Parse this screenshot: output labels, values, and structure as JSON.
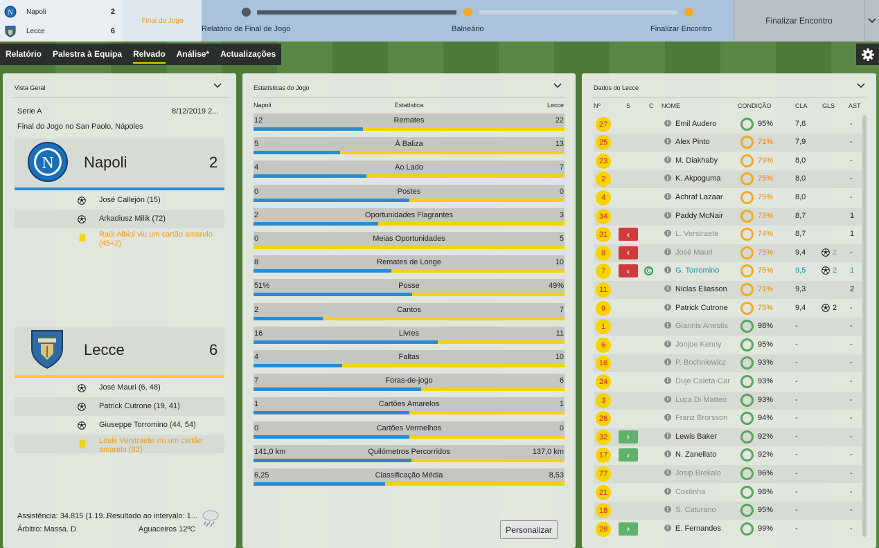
{
  "score": {
    "home": {
      "name": "Napoli",
      "goals": "2"
    },
    "away": {
      "name": "Lecce",
      "goals": "6"
    },
    "status": "Final do Jogo"
  },
  "progress": {
    "steps": [
      "Relatório de Final de Jogo",
      "Balneário",
      "Finalizar Encontro"
    ],
    "finish_button": "Finalizar Encontro",
    "colors": {
      "done": "#4f5962",
      "current": "#f2a928",
      "track": "#c8d2dc"
    }
  },
  "tabs": [
    "Relatório",
    "Palestra à Equipa",
    "Relvado",
    "Análise*",
    "Actualizações"
  ],
  "active_tab": "Relvado",
  "overview": {
    "title": "Vista Geral",
    "competition": "Serie A",
    "date": "8/12/2019 2...",
    "venue": "Final do Jogo no San Paolo, Nápoles",
    "home": {
      "name": "Napoli",
      "goals": "2",
      "color": "#2a8ad4",
      "events": [
        {
          "type": "goal",
          "text": "José Callejón (15)"
        },
        {
          "type": "goal",
          "text": "Arkadiusz Milik (72)"
        },
        {
          "type": "yellow",
          "text": "Raúl Albiol viu um cartão amarelo (45+2)"
        }
      ]
    },
    "away": {
      "name": "Lecce",
      "goals": "6",
      "color": "#f5d300",
      "events": [
        {
          "type": "goal",
          "text": "José Mauri (6, 48)"
        },
        {
          "type": "goal",
          "text": "Patrick Cutrone (19, 41)"
        },
        {
          "type": "goal",
          "text": "Giuseppe Torromino (44, 54)"
        },
        {
          "type": "yellow",
          "text": "Louis Verstraete viu um cartão amarelo (82)"
        }
      ]
    },
    "attendance": "Assistência: 34.815 (1.19...",
    "halftime": "Resultado ao intervalo: 1...",
    "referee": "Árbitro: Massa. D",
    "weather": "Aguaceiros 12ºC"
  },
  "stats": {
    "title": "Estatísticas do Jogo",
    "col_home": "Napoli",
    "col_stat": "Estatística",
    "col_away": "Lecce",
    "customize": "Personalizar",
    "rows": [
      {
        "label": "Remates",
        "home": "12",
        "away": "22",
        "home_share": 0.353
      },
      {
        "label": "À Baliza",
        "home": "5",
        "away": "13",
        "home_share": 0.278
      },
      {
        "label": "Ao Lado",
        "home": "4",
        "away": "7",
        "home_share": 0.364
      },
      {
        "label": "Postes",
        "home": "0",
        "away": "0",
        "home_share": 0.5
      },
      {
        "label": "Oportunidades Flagrantes",
        "home": "2",
        "away": "3",
        "home_share": 0.4
      },
      {
        "label": "Meias Oportunidades",
        "home": "0",
        "away": "5",
        "home_share": 0.0
      },
      {
        "label": "Remates de Longe",
        "home": "8",
        "away": "10",
        "home_share": 0.444
      },
      {
        "label": "Posse",
        "home": "51%",
        "away": "49%",
        "home_share": 0.51
      },
      {
        "label": "Cantos",
        "home": "2",
        "away": "7",
        "home_share": 0.222
      },
      {
        "label": "Livres",
        "home": "16",
        "away": "11",
        "home_share": 0.593
      },
      {
        "label": "Faltas",
        "home": "4",
        "away": "10",
        "home_share": 0.286
      },
      {
        "label": "Foras-de-jogo",
        "home": "7",
        "away": "6",
        "home_share": 0.538
      },
      {
        "label": "Cartões Amarelos",
        "home": "1",
        "away": "1",
        "home_share": 0.5
      },
      {
        "label": "Cartões Vermelhos",
        "home": "0",
        "away": "0",
        "home_share": 0.5
      },
      {
        "label": "Quilómetros Percorridos",
        "home": "141,0 km",
        "away": "137,0 km",
        "home_share": 0.507
      },
      {
        "label": "Classificação Média",
        "home": "6,25",
        "away": "8,53",
        "home_share": 0.423
      }
    ]
  },
  "squad": {
    "title": "Dados do Lecce",
    "headers": {
      "num": "Nº",
      "s": "S",
      "c": "C",
      "name": "NOME",
      "cond": "CONDIÇÃO",
      "cla": "CLA",
      "gls": "GLS",
      "ast": "AST"
    },
    "players": [
      {
        "num": "27",
        "sub": "",
        "cap": false,
        "name": "Emil Audero",
        "cond": "95%",
        "low": false,
        "cla": "7,6",
        "gls": "",
        "ast": "-",
        "played": true
      },
      {
        "num": "25",
        "sub": "",
        "cap": false,
        "name": "Alex Pinto",
        "cond": "71%",
        "low": true,
        "cla": "7,9",
        "gls": "",
        "ast": "-",
        "played": true
      },
      {
        "num": "23",
        "sub": "",
        "cap": false,
        "name": "M. Diakhaby",
        "cond": "79%",
        "low": true,
        "cla": "8,0",
        "gls": "",
        "ast": "-",
        "played": true
      },
      {
        "num": "2",
        "sub": "",
        "cap": false,
        "name": "K. Akpoguma",
        "cond": "75%",
        "low": true,
        "cla": "8,0",
        "gls": "",
        "ast": "-",
        "played": true
      },
      {
        "num": "4",
        "sub": "",
        "cap": false,
        "name": "Achraf Lazaar",
        "cond": "75%",
        "low": true,
        "cla": "8,0",
        "gls": "",
        "ast": "-",
        "played": true
      },
      {
        "num": "34",
        "sub": "",
        "cap": false,
        "name": "Paddy McNair",
        "cond": "73%",
        "low": true,
        "cla": "8,7",
        "gls": "",
        "ast": "1",
        "played": true
      },
      {
        "num": "31",
        "sub": "out",
        "cap": false,
        "name": "L. Verstraete",
        "cond": "74%",
        "low": true,
        "cla": "8,7",
        "gls": "",
        "ast": "1",
        "played": false
      },
      {
        "num": "8",
        "sub": "out",
        "cap": false,
        "name": "José Mauri",
        "cond": "75%",
        "low": true,
        "cla": "9,4",
        "gls": "2",
        "ast": "-",
        "played": false
      },
      {
        "num": "7",
        "sub": "out",
        "cap": true,
        "name": "G. Torromino",
        "cond": "75%",
        "low": true,
        "cla": "9,5",
        "gls": "2",
        "ast": "1",
        "played": false,
        "highlight": true
      },
      {
        "num": "11",
        "sub": "",
        "cap": false,
        "name": "Niclas Eliasson",
        "cond": "71%",
        "low": true,
        "cla": "9,3",
        "gls": "",
        "ast": "2",
        "played": true
      },
      {
        "num": "9",
        "sub": "",
        "cap": false,
        "name": "Patrick Cutrone",
        "cond": "75%",
        "low": true,
        "cla": "9,4",
        "gls": "2",
        "ast": "-",
        "played": true
      },
      {
        "num": "1",
        "sub": "",
        "cap": false,
        "name": "Giannis Anestis",
        "cond": "98%",
        "low": false,
        "cla": "-",
        "gls": "",
        "ast": "-",
        "played": false
      },
      {
        "num": "6",
        "sub": "",
        "cap": false,
        "name": "Jonjoe Kenny",
        "cond": "95%",
        "low": false,
        "cla": "-",
        "gls": "",
        "ast": "-",
        "played": false
      },
      {
        "num": "16",
        "sub": "",
        "cap": false,
        "name": "P. Bochniewicz",
        "cond": "93%",
        "low": false,
        "cla": "-",
        "gls": "",
        "ast": "-",
        "played": false
      },
      {
        "num": "24",
        "sub": "",
        "cap": false,
        "name": "Duje Caleta-Car",
        "cond": "93%",
        "low": false,
        "cla": "-",
        "gls": "",
        "ast": "-",
        "played": false
      },
      {
        "num": "3",
        "sub": "",
        "cap": false,
        "name": "Luca Di Matteo",
        "cond": "93%",
        "low": false,
        "cla": "-",
        "gls": "",
        "ast": "-",
        "played": false
      },
      {
        "num": "26",
        "sub": "",
        "cap": false,
        "name": "Franz Brorsson",
        "cond": "94%",
        "low": false,
        "cla": "-",
        "gls": "",
        "ast": "-",
        "played": false
      },
      {
        "num": "32",
        "sub": "in",
        "cap": false,
        "name": "Lewis Baker",
        "cond": "92%",
        "low": false,
        "cla": "-",
        "gls": "",
        "ast": "-",
        "played": true
      },
      {
        "num": "17",
        "sub": "in",
        "cap": false,
        "name": "N. Zanellato",
        "cond": "92%",
        "low": false,
        "cla": "-",
        "gls": "",
        "ast": "-",
        "played": true
      },
      {
        "num": "77",
        "sub": "",
        "cap": false,
        "name": "Josip Brekalo",
        "cond": "96%",
        "low": false,
        "cla": "-",
        "gls": "",
        "ast": "-",
        "played": false
      },
      {
        "num": "21",
        "sub": "",
        "cap": false,
        "name": "Costinha",
        "cond": "98%",
        "low": false,
        "cla": "-",
        "gls": "",
        "ast": "-",
        "played": false
      },
      {
        "num": "18",
        "sub": "",
        "cap": false,
        "name": "S. Caturano",
        "cond": "95%",
        "low": false,
        "cla": "-",
        "gls": "",
        "ast": "-",
        "played": false
      },
      {
        "num": "28",
        "sub": "in",
        "cap": false,
        "name": "E. Fernandes",
        "cond": "99%",
        "low": false,
        "cla": "-",
        "gls": "",
        "ast": "-",
        "played": true
      }
    ]
  }
}
